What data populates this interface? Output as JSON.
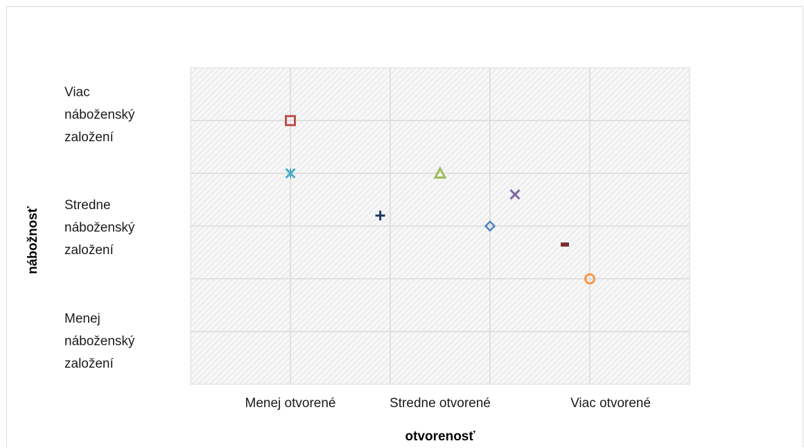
{
  "chart_data": {
    "type": "scatter",
    "xlabel": "otvorenosť",
    "ylabel": "nábožnosť",
    "x_categories": [
      "Menej otvorené",
      "Stredne otvorené",
      "Viac otvorené"
    ],
    "y_categories": [
      "Menej náboženský založení",
      "Stredne náboženský založení",
      "Viac náboženský založení"
    ],
    "y_category_lines": [
      [
        "Menej",
        "náboženský",
        "založení"
      ],
      [
        "Stredne",
        "náboženský",
        "založení"
      ],
      [
        "Viac",
        "náboženský",
        "založení"
      ]
    ],
    "xlim": [
      0,
      5
    ],
    "ylim": [
      0,
      6
    ],
    "grid": true,
    "legend": "none",
    "points": [
      {
        "x": 1.0,
        "y": 5.0,
        "marker": "square",
        "color": "#c0504d"
      },
      {
        "x": 1.0,
        "y": 4.0,
        "marker": "asterisk",
        "color": "#4bacc6"
      },
      {
        "x": 2.5,
        "y": 4.0,
        "marker": "triangle",
        "color": "#9bbb59"
      },
      {
        "x": 3.25,
        "y": 3.6,
        "marker": "x",
        "color": "#8064a2"
      },
      {
        "x": 1.9,
        "y": 3.2,
        "marker": "plus",
        "color": "#1f3864"
      },
      {
        "x": 3.0,
        "y": 3.0,
        "marker": "diamond",
        "color": "#4f81bd"
      },
      {
        "x": 3.75,
        "y": 2.65,
        "marker": "dash",
        "color": "#7b2c2c"
      },
      {
        "x": 4.0,
        "y": 2.0,
        "marker": "circle",
        "color": "#f79646"
      }
    ]
  }
}
